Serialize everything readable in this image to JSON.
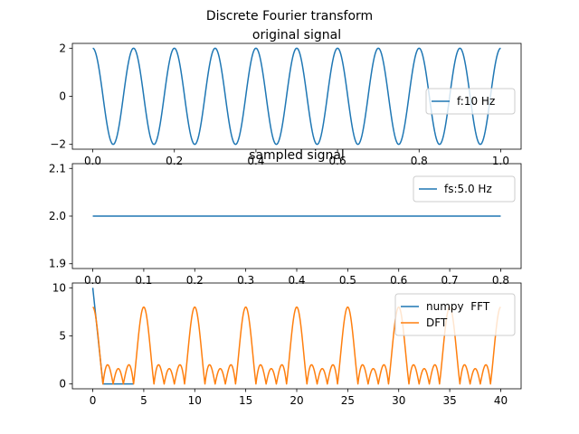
{
  "figure": {
    "suptitle": "Discrete Fourier transform"
  },
  "chart_data": [
    {
      "type": "line",
      "title": "original signal",
      "xlabel": "",
      "ylabel": "",
      "xlim": [
        -0.05,
        1.05
      ],
      "ylim": [
        -2.2,
        2.2
      ],
      "xticks": [
        0.0,
        0.2,
        0.4,
        0.6,
        0.8,
        1.0
      ],
      "xticklabels": [
        "0.0",
        "0.2",
        "0.4",
        "0.6",
        "0.8",
        "1.0"
      ],
      "yticks": [
        2,
        0,
        -2
      ],
      "yticklabels": [
        "2",
        "0",
        "−2"
      ],
      "legend_location": "center-right",
      "series": [
        {
          "name": "f:10 Hz",
          "color": "#1f77b4",
          "function": "2*cos(2*pi*10*t)",
          "t_range": [
            0,
            1
          ],
          "samples": 501
        }
      ]
    },
    {
      "type": "line",
      "title": "sampled signal",
      "xlabel": "",
      "ylabel": "",
      "xlim": [
        -0.04,
        0.84
      ],
      "ylim": [
        1.89,
        2.11
      ],
      "xticks": [
        0.0,
        0.1,
        0.2,
        0.3,
        0.4,
        0.5,
        0.6,
        0.7,
        0.8
      ],
      "xticklabels": [
        "0.0",
        "0.1",
        "0.2",
        "0.3",
        "0.4",
        "0.5",
        "0.6",
        "0.7",
        "0.8"
      ],
      "yticks": [
        2.1,
        2.0,
        1.9
      ],
      "yticklabels": [
        "2.1",
        "2.0",
        "1.9"
      ],
      "legend_location": "top-right",
      "series": [
        {
          "name": "fs:5.0 Hz",
          "color": "#1f77b4",
          "x": [
            0.0,
            0.2,
            0.4,
            0.6,
            0.8
          ],
          "y": [
            2.0,
            2.0,
            2.0,
            2.0,
            2.0
          ]
        }
      ]
    },
    {
      "type": "line",
      "title": "",
      "xlabel": "",
      "ylabel": "",
      "xlim": [
        -2,
        42
      ],
      "ylim": [
        -0.5,
        10.5
      ],
      "xticks": [
        0,
        5,
        10,
        15,
        20,
        25,
        30,
        35,
        40
      ],
      "xticklabels": [
        "0",
        "5",
        "10",
        "15",
        "20",
        "25",
        "30",
        "35",
        "40"
      ],
      "yticks": [
        10,
        5,
        0
      ],
      "yticklabels": [
        "10",
        "5",
        "0"
      ],
      "legend_location": "top-right",
      "series": [
        {
          "name": "numpy  FFT",
          "color": "#1f77b4",
          "x": [
            0,
            1,
            2,
            3,
            4
          ],
          "y": [
            10,
            0,
            0,
            0,
            0
          ]
        },
        {
          "name": "DFT",
          "color": "#ff7f0e",
          "function": "|sin(pi*k)/sin(pi*k/5)| * 8/5",
          "k_range": [
            0,
            40
          ],
          "samples": 801
        }
      ]
    }
  ]
}
